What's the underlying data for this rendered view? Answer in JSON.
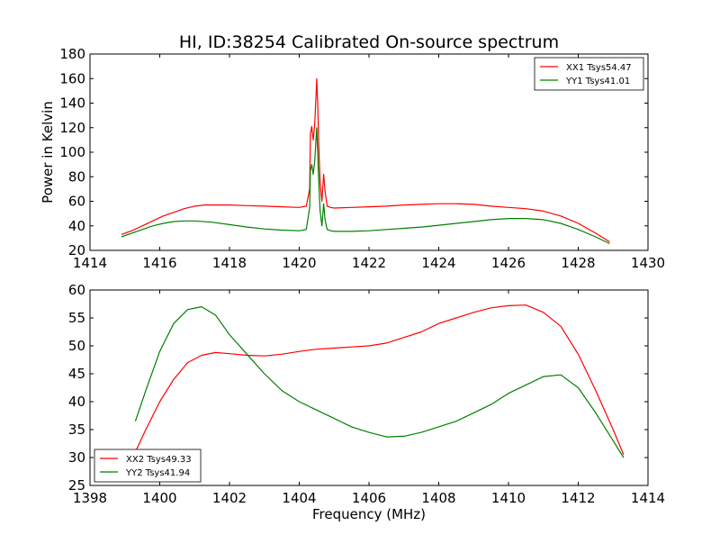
{
  "figure": {
    "title": "HI, ID:38254 Calibrated On-source spectrum",
    "shared_xlabel": "Frequency (MHz)"
  },
  "colors": {
    "red": "#ff0000",
    "green": "#008000",
    "axis": "#000000"
  },
  "chart_data": [
    {
      "type": "line",
      "title": "HI, ID:38254 Calibrated On-source spectrum",
      "xlabel": "",
      "ylabel": "Power in Kelvin",
      "xlim": [
        1414,
        1430
      ],
      "ylim": [
        20,
        180
      ],
      "xticks": [
        1414,
        1416,
        1418,
        1420,
        1422,
        1424,
        1426,
        1428,
        1430
      ],
      "yticks": [
        20,
        40,
        60,
        80,
        100,
        120,
        140,
        160,
        180
      ],
      "legend_position": "top-right",
      "series": [
        {
          "name": "XX1 Tsys54.47",
          "color": "#ff0000",
          "x": [
            1414.9,
            1415.2,
            1415.5,
            1415.8,
            1416.1,
            1416.4,
            1416.7,
            1417.0,
            1417.3,
            1417.6,
            1418.0,
            1418.5,
            1419.0,
            1419.5,
            1420.0,
            1420.2,
            1420.3,
            1420.32,
            1420.36,
            1420.4,
            1420.44,
            1420.48,
            1420.5,
            1420.53,
            1420.56,
            1420.6,
            1420.65,
            1420.7,
            1420.74,
            1420.8,
            1420.9,
            1421.0,
            1421.5,
            1422.0,
            1422.5,
            1423.0,
            1423.5,
            1424.0,
            1424.5,
            1425.0,
            1425.5,
            1426.0,
            1426.5,
            1427.0,
            1427.5,
            1428.0,
            1428.5,
            1428.9
          ],
          "y": [
            33,
            36,
            40,
            44,
            48,
            51,
            54,
            56,
            57,
            57,
            57,
            56.5,
            56,
            55.5,
            55,
            56,
            70,
            115,
            121,
            110,
            122,
            145,
            160,
            140,
            105,
            75,
            60,
            82,
            68,
            56,
            55,
            54.5,
            55,
            55.5,
            56,
            57,
            57.5,
            58,
            58,
            57.5,
            56,
            55,
            54,
            52,
            48,
            42,
            34,
            27
          ]
        },
        {
          "name": "YY1 Tsys41.01",
          "color": "#008000",
          "x": [
            1414.9,
            1415.2,
            1415.5,
            1415.8,
            1416.1,
            1416.4,
            1416.7,
            1417.0,
            1417.5,
            1418.0,
            1418.5,
            1419.0,
            1419.5,
            1420.0,
            1420.2,
            1420.3,
            1420.32,
            1420.36,
            1420.4,
            1420.44,
            1420.48,
            1420.5,
            1420.53,
            1420.56,
            1420.6,
            1420.65,
            1420.7,
            1420.74,
            1420.8,
            1420.9,
            1421.0,
            1421.5,
            1422.0,
            1422.5,
            1423.0,
            1423.5,
            1424.0,
            1424.5,
            1425.0,
            1425.5,
            1426.0,
            1426.5,
            1427.0,
            1427.5,
            1428.0,
            1428.5,
            1428.9
          ],
          "y": [
            31,
            34,
            37,
            40,
            42,
            43.5,
            44,
            44,
            43,
            41,
            39,
            37.5,
            36.5,
            36,
            37,
            55,
            85,
            90,
            82,
            92,
            110,
            120,
            100,
            75,
            52,
            40,
            58,
            45,
            37,
            36,
            35.5,
            35.5,
            36,
            37,
            38,
            39,
            40.5,
            42,
            43.5,
            45,
            46,
            46,
            45,
            42,
            37,
            31,
            25.5
          ]
        }
      ]
    },
    {
      "type": "line",
      "title": "",
      "xlabel": "Frequency (MHz)",
      "ylabel": "",
      "xlim": [
        1398,
        1414
      ],
      "ylim": [
        25,
        60
      ],
      "xticks": [
        1398,
        1400,
        1402,
        1404,
        1406,
        1408,
        1410,
        1412,
        1414
      ],
      "yticks": [
        25,
        30,
        35,
        40,
        45,
        50,
        55,
        60
      ],
      "legend_position": "bottom-left",
      "series": [
        {
          "name": "XX2 Tsys49.33",
          "color": "#ff0000",
          "x": [
            1399.3,
            1399.6,
            1400.0,
            1400.4,
            1400.8,
            1401.2,
            1401.6,
            1402.0,
            1402.5,
            1403.0,
            1403.5,
            1404.0,
            1404.5,
            1405.0,
            1405.5,
            1406.0,
            1406.5,
            1407.0,
            1407.5,
            1408.0,
            1408.5,
            1409.0,
            1409.5,
            1410.0,
            1410.5,
            1411.0,
            1411.5,
            1412.0,
            1412.5,
            1413.0,
            1413.3
          ],
          "y": [
            31,
            35,
            40,
            44,
            47,
            48.3,
            48.8,
            48.6,
            48.3,
            48.2,
            48.5,
            49,
            49.4,
            49.6,
            49.8,
            50,
            50.5,
            51.5,
            52.5,
            54,
            55,
            56,
            56.8,
            57.2,
            57.3,
            56,
            53.5,
            48.5,
            42,
            35,
            30.5
          ]
        },
        {
          "name": "YY2 Tsys41.94",
          "color": "#008000",
          "x": [
            1399.3,
            1399.6,
            1400.0,
            1400.4,
            1400.8,
            1401.2,
            1401.6,
            1402.0,
            1402.5,
            1403.0,
            1403.5,
            1404.0,
            1404.5,
            1405.0,
            1405.5,
            1406.0,
            1406.5,
            1407.0,
            1407.5,
            1408.0,
            1408.5,
            1409.0,
            1409.5,
            1410.0,
            1410.5,
            1411.0,
            1411.5,
            1412.0,
            1412.5,
            1413.0,
            1413.3
          ],
          "y": [
            36.5,
            42,
            49,
            54,
            56.5,
            57,
            55.5,
            52,
            48.5,
            45,
            42,
            40,
            38.5,
            37,
            35.5,
            34.5,
            33.7,
            33.8,
            34.5,
            35.5,
            36.5,
            38,
            39.5,
            41.5,
            43,
            44.5,
            44.8,
            42.5,
            38,
            33,
            30
          ]
        }
      ]
    }
  ]
}
